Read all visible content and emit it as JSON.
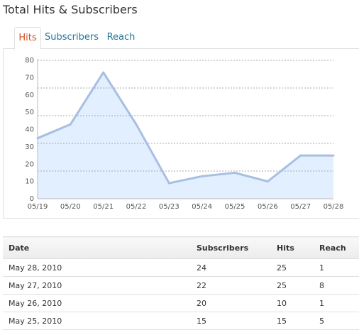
{
  "page": {
    "title": "Total Hits & Subscribers"
  },
  "tabs": [
    {
      "label": "Hits",
      "active": true
    },
    {
      "label": "Subscribers",
      "active": false
    },
    {
      "label": "Reach",
      "active": false
    }
  ],
  "colors": {
    "line": "#a8bfe3",
    "fill": "#e1efff",
    "active_tab": "#d54e21",
    "tab": "#21759b"
  },
  "chart_data": {
    "type": "area",
    "title": "",
    "xlabel": "",
    "ylabel": "",
    "categories": [
      "05/19",
      "05/20",
      "05/21",
      "05/22",
      "05/23",
      "05/24",
      "05/25",
      "05/26",
      "05/27",
      "05/28"
    ],
    "series": [
      {
        "values": [
          35,
          43,
          73,
          43,
          9,
          13,
          15,
          10,
          25,
          25
        ]
      }
    ],
    "ylim": [
      0,
      80
    ],
    "yticks": [
      0,
      10,
      20,
      30,
      40,
      50,
      60,
      70,
      80
    ],
    "grid": true,
    "legend": "none"
  },
  "table": {
    "headers": {
      "date": "Date",
      "subscribers": "Subscribers",
      "hits": "Hits",
      "reach": "Reach"
    },
    "rows": [
      {
        "date": "May 28, 2010",
        "subscribers": "24",
        "hits": "25",
        "reach": "1"
      },
      {
        "date": "May 27, 2010",
        "subscribers": "22",
        "hits": "25",
        "reach": "8"
      },
      {
        "date": "May 26, 2010",
        "subscribers": "20",
        "hits": "10",
        "reach": "1"
      },
      {
        "date": "May 25, 2010",
        "subscribers": "15",
        "hits": "15",
        "reach": "5"
      }
    ]
  }
}
